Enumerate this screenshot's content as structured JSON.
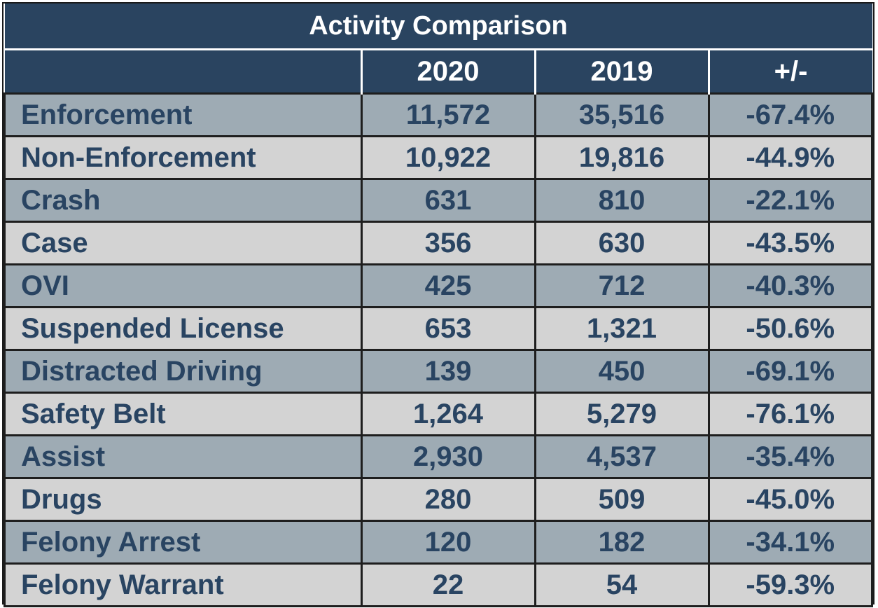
{
  "table": {
    "title": "Activity Comparison",
    "headers": [
      "",
      "2020",
      "2019",
      "+/-"
    ],
    "rows": [
      {
        "label": "Enforcement",
        "y2020": "11,572",
        "y2019": "35,516",
        "change": "-67.4%"
      },
      {
        "label": "Non-Enforcement",
        "y2020": "10,922",
        "y2019": "19,816",
        "change": "-44.9%"
      },
      {
        "label": "Crash",
        "y2020": "631",
        "y2019": "810",
        "change": "-22.1%"
      },
      {
        "label": "Case",
        "y2020": "356",
        "y2019": "630",
        "change": "-43.5%"
      },
      {
        "label": "OVI",
        "y2020": "425",
        "y2019": "712",
        "change": "-40.3%"
      },
      {
        "label": "Suspended License",
        "y2020": "653",
        "y2019": "1,321",
        "change": "-50.6%"
      },
      {
        "label": "Distracted Driving",
        "y2020": "139",
        "y2019": "450",
        "change": "-69.1%"
      },
      {
        "label": "Safety Belt",
        "y2020": "1,264",
        "y2019": "5,279",
        "change": "-76.1%"
      },
      {
        "label": "Assist",
        "y2020": "2,930",
        "y2019": "4,537",
        "change": "-35.4%"
      },
      {
        "label": "Drugs",
        "y2020": "280",
        "y2019": "509",
        "change": "-45.0%"
      },
      {
        "label": "Felony Arrest",
        "y2020": "120",
        "y2019": "182",
        "change": "-34.1%"
      },
      {
        "label": "Felony Warrant",
        "y2020": "22",
        "y2019": "54",
        "change": "-59.3%"
      }
    ]
  },
  "colors": {
    "header_bg": "#2a4460",
    "header_text": "#ffffff",
    "row_dark": "#9eabb4",
    "row_light": "#d3d3d3",
    "cell_text": "#294462"
  }
}
